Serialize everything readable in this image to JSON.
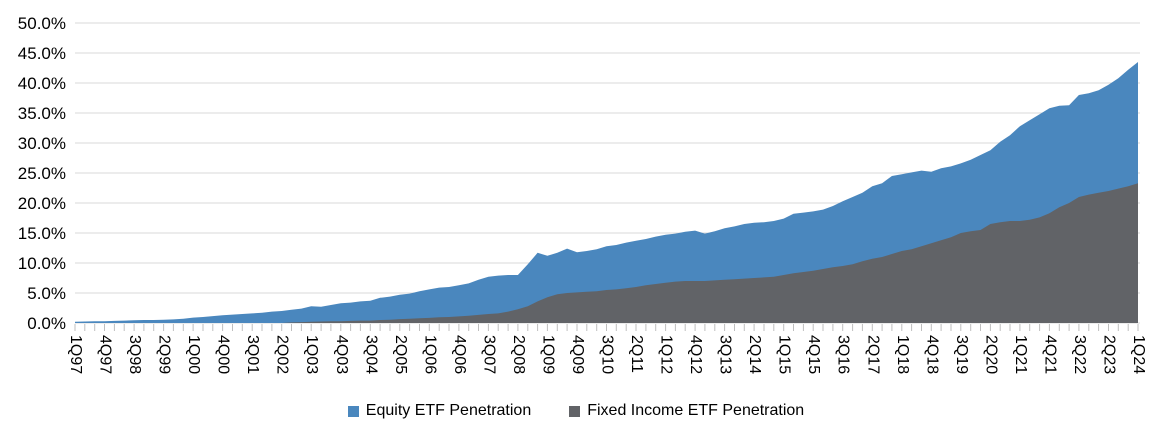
{
  "chart_data": {
    "type": "area",
    "title": "",
    "xlabel": "",
    "ylabel": "",
    "ylim": [
      0,
      50
    ],
    "y_tick_step": 5,
    "grid": true,
    "legend_position": "bottom",
    "overlay": "series drawn over each other (not stacked); second series in front",
    "y_tick_labels": [
      "0.0%",
      "5.0%",
      "10.0%",
      "15.0%",
      "20.0%",
      "25.0%",
      "30.0%",
      "35.0%",
      "40.0%",
      "45.0%",
      "50.0%"
    ],
    "x_tick_labels": [
      "1Q97",
      "4Q97",
      "3Q98",
      "2Q99",
      "1Q00",
      "4Q00",
      "3Q01",
      "2Q02",
      "1Q03",
      "4Q03",
      "3Q04",
      "2Q05",
      "1Q06",
      "4Q06",
      "3Q07",
      "2Q08",
      "1Q09",
      "4Q09",
      "3Q10",
      "2Q11",
      "1Q12",
      "4Q12",
      "3Q13",
      "2Q14",
      "1Q15",
      "4Q15",
      "3Q16",
      "2Q17",
      "1Q18",
      "4Q18",
      "3Q19",
      "2Q20",
      "1Q21",
      "4Q21",
      "3Q22",
      "2Q23",
      "1Q24"
    ],
    "x_tick_every": 3,
    "quarters": [
      "1Q97",
      "2Q97",
      "3Q97",
      "4Q97",
      "1Q98",
      "2Q98",
      "3Q98",
      "4Q98",
      "1Q99",
      "2Q99",
      "3Q99",
      "4Q99",
      "1Q00",
      "2Q00",
      "3Q00",
      "4Q00",
      "1Q01",
      "2Q01",
      "3Q01",
      "4Q01",
      "1Q02",
      "2Q02",
      "3Q02",
      "4Q02",
      "1Q03",
      "2Q03",
      "3Q03",
      "4Q03",
      "1Q04",
      "2Q04",
      "3Q04",
      "4Q04",
      "1Q05",
      "2Q05",
      "3Q05",
      "4Q05",
      "1Q06",
      "2Q06",
      "3Q06",
      "4Q06",
      "1Q07",
      "2Q07",
      "3Q07",
      "4Q07",
      "1Q08",
      "2Q08",
      "3Q08",
      "4Q08",
      "1Q09",
      "2Q09",
      "3Q09",
      "4Q09",
      "1Q10",
      "2Q10",
      "3Q10",
      "4Q10",
      "1Q11",
      "2Q11",
      "3Q11",
      "4Q11",
      "1Q12",
      "2Q12",
      "3Q12",
      "4Q12",
      "1Q13",
      "2Q13",
      "3Q13",
      "4Q13",
      "1Q14",
      "2Q14",
      "3Q14",
      "4Q14",
      "1Q15",
      "2Q15",
      "3Q15",
      "4Q15",
      "1Q16",
      "2Q16",
      "3Q16",
      "4Q16",
      "1Q17",
      "2Q17",
      "3Q17",
      "4Q17",
      "1Q18",
      "2Q18",
      "3Q18",
      "4Q18",
      "1Q19",
      "2Q19",
      "3Q19",
      "4Q19",
      "1Q20",
      "2Q20",
      "3Q20",
      "4Q20",
      "1Q21",
      "2Q21",
      "3Q21",
      "4Q21",
      "1Q22",
      "2Q22",
      "3Q22",
      "4Q22",
      "1Q23",
      "2Q23",
      "3Q23",
      "4Q23",
      "1Q24"
    ],
    "series": [
      {
        "name": "Equity ETF Penetration",
        "color": "#4A87BE",
        "values": [
          0.2,
          0.25,
          0.3,
          0.3,
          0.35,
          0.4,
          0.45,
          0.5,
          0.5,
          0.55,
          0.6,
          0.7,
          0.9,
          1.0,
          1.15,
          1.3,
          1.4,
          1.5,
          1.6,
          1.7,
          1.9,
          2.0,
          2.2,
          2.4,
          2.8,
          2.7,
          3.0,
          3.3,
          3.4,
          3.6,
          3.7,
          4.2,
          4.4,
          4.7,
          4.9,
          5.3,
          5.6,
          5.9,
          6.0,
          6.3,
          6.6,
          7.2,
          7.7,
          7.9,
          8.0,
          8.0,
          9.8,
          11.7,
          11.2,
          11.7,
          12.4,
          11.8,
          12.0,
          12.3,
          12.8,
          13.0,
          13.4,
          13.7,
          14.0,
          14.4,
          14.7,
          14.9,
          15.2,
          15.4,
          14.9,
          15.3,
          15.8,
          16.1,
          16.5,
          16.7,
          16.8,
          17.0,
          17.4,
          18.2,
          18.4,
          18.6,
          18.9,
          19.5,
          20.3,
          21.0,
          21.7,
          22.8,
          23.3,
          24.5,
          24.8,
          25.1,
          25.4,
          25.2,
          25.8,
          26.1,
          26.6,
          27.2,
          28.0,
          28.8,
          30.2,
          31.3,
          32.8,
          33.8,
          34.8,
          35.8,
          36.2,
          36.3,
          38.0,
          38.3,
          38.8,
          39.7,
          40.8,
          42.2,
          43.5
        ]
      },
      {
        "name": "Fixed Income ETF Penetration",
        "color": "#616367",
        "values": [
          0,
          0,
          0,
          0,
          0,
          0,
          0,
          0,
          0,
          0,
          0,
          0,
          0,
          0,
          0,
          0,
          0,
          0,
          0,
          0,
          0,
          0,
          0.1,
          0.15,
          0.2,
          0.25,
          0.3,
          0.3,
          0.35,
          0.4,
          0.4,
          0.5,
          0.55,
          0.65,
          0.7,
          0.8,
          0.85,
          0.95,
          1.0,
          1.1,
          1.2,
          1.35,
          1.5,
          1.6,
          1.9,
          2.3,
          2.8,
          3.6,
          4.3,
          4.8,
          5.0,
          5.1,
          5.2,
          5.3,
          5.5,
          5.6,
          5.8,
          6.0,
          6.3,
          6.5,
          6.7,
          6.9,
          7.0,
          7.0,
          7.0,
          7.1,
          7.2,
          7.3,
          7.4,
          7.5,
          7.6,
          7.7,
          8.0,
          8.3,
          8.5,
          8.7,
          9.0,
          9.3,
          9.5,
          9.8,
          10.3,
          10.7,
          11.0,
          11.5,
          12.0,
          12.3,
          12.8,
          13.3,
          13.8,
          14.3,
          15.0,
          15.3,
          15.5,
          16.5,
          16.8,
          17.0,
          17.0,
          17.2,
          17.6,
          18.3,
          19.3,
          20.0,
          21.0,
          21.4,
          21.7,
          22.0,
          22.4,
          22.8,
          23.3
        ]
      }
    ],
    "colors": {
      "gridline": "#D9D9D9",
      "tick": "#BFBFBF",
      "axis_text": "#000000",
      "background": "#FFFFFF"
    }
  },
  "legend": {
    "items": [
      {
        "label": "Equity ETF Penetration",
        "color": "#4A87BE"
      },
      {
        "label": "Fixed Income ETF Penetration",
        "color": "#616367"
      }
    ]
  }
}
